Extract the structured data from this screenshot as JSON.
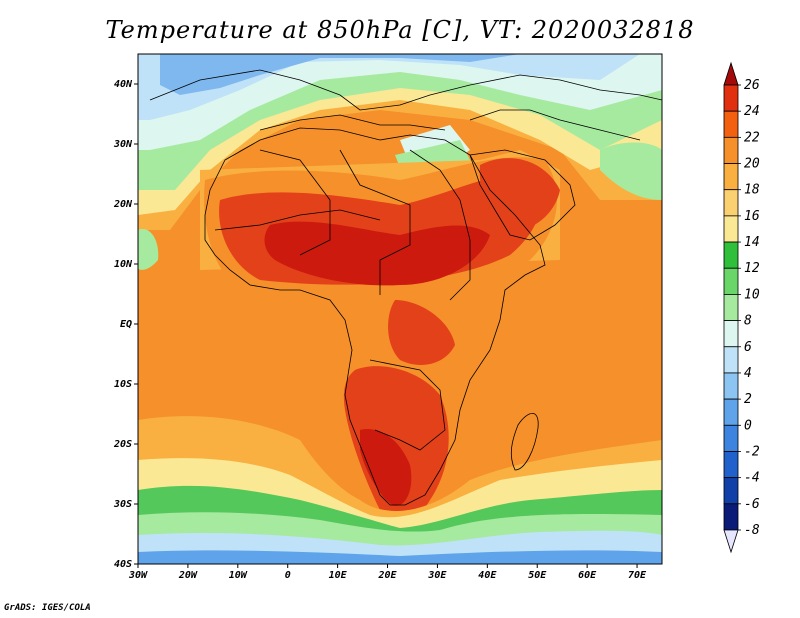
{
  "title": "Temperature at 850hPa [C], VT: 2020032818",
  "credit": "GrADS: IGES/COLA",
  "map": {
    "lon_range": [
      -30,
      75
    ],
    "lat_range": [
      -40,
      45
    ],
    "x_ticks": [
      "30W",
      "20W",
      "10W",
      "0",
      "10E",
      "20E",
      "30E",
      "40E",
      "50E",
      "60E",
      "70E"
    ],
    "y_ticks": [
      "40N",
      "30N",
      "20N",
      "10N",
      "EQ",
      "10S",
      "20S",
      "30S",
      "40S"
    ]
  },
  "colorbar": {
    "levels": [
      "26",
      "24",
      "22",
      "20",
      "18",
      "16",
      "14",
      "12",
      "10",
      "8",
      "6",
      "4",
      "2",
      "0",
      "-2",
      "-4",
      "-6",
      "-8"
    ],
    "colors": [
      "#a50a0a",
      "#e0300f",
      "#f36010",
      "#f6902a",
      "#f9b040",
      "#fbd070",
      "#fbe895",
      "#2fbf3a",
      "#6ad66a",
      "#a6ea9f",
      "#ddf6f0",
      "#bfe2f8",
      "#8cc4f2",
      "#5fa4ea",
      "#3d84e0",
      "#2061cc",
      "#1040a8",
      "#0a1c78",
      "#e6e6ff"
    ]
  },
  "field_colors": {
    "max": "#cc1a0e",
    "hot": "#e3411a",
    "warm": "#f6902a",
    "mild": "#f9b040",
    "cool": "#fbe895",
    "green": "#54c85a",
    "lightgreen": "#a6ea9f",
    "mint": "#ddf6f0",
    "lightblue": "#bfe2f8",
    "blue": "#7fb8ee",
    "deepblue": "#5fa4ea"
  }
}
